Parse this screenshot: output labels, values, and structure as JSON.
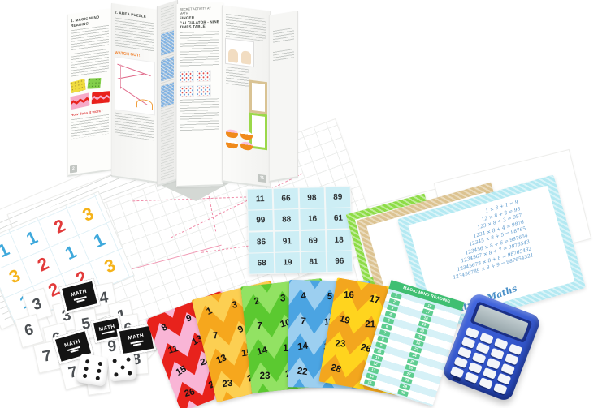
{
  "photo": {
    "subject": "Children's math activity kit laid out: accordion instruction booklet, number cards, zigzag mind-reading cards, certificates, dice and a calculator"
  },
  "booklet": {
    "panel1": {
      "heading": "1. MAGIC MIND READING",
      "subheading": "How does it work?",
      "page_number": "2"
    },
    "panel2": {
      "heading": "2. AREA PUZZLE",
      "callout": "WATCH OUT!"
    },
    "panel4": {
      "kicker": "SECRET ACTIVITY AT MATH",
      "heading": "FINGER CALCULATOR - NINE TIMES TABLE"
    },
    "panel5": {
      "page_number": "11"
    }
  },
  "number_grid_card": {
    "cells": [
      "11",
      "66",
      "98",
      "89",
      "99",
      "88",
      "16",
      "61",
      "86",
      "91",
      "69",
      "18",
      "68",
      "19",
      "81",
      "96"
    ]
  },
  "number_sheet": {
    "badge": "1",
    "cells": [
      "1",
      "1",
      "2",
      "3",
      "3",
      "2",
      "1",
      "1",
      "1",
      "2",
      "2",
      "3"
    ]
  },
  "scatter": {
    "digits": [
      "3",
      "3",
      "4",
      "1",
      "6",
      "5",
      "6",
      "7",
      "6",
      "1",
      "9",
      "8",
      "7",
      "2"
    ],
    "logo_label": "MATH"
  },
  "dice": {
    "left_die_top": "6",
    "right_die_top": "5"
  },
  "certificates": {
    "script_text": "Beauty of Maths",
    "equations": [
      "1 × 8 + 1 = 9",
      "12 × 8 + 2 = 98",
      "123 × 8 + 3 = 987",
      "1234 × 8 + 4 = 9876",
      "12345 × 8 + 5 = 98765",
      "123456 × 8 + 6 = 987654",
      "1234567 × 8 + 7 = 9876543",
      "12345678 × 8 + 8 = 98765432",
      "123456789 × 8 + 9 = 987654321"
    ]
  },
  "fan_cards": {
    "pink": {
      "numbers": [
        "8",
        "9",
        "10",
        "11",
        "13",
        "14",
        "15",
        "24",
        "25",
        "26",
        "27",
        "28"
      ]
    },
    "orange": {
      "numbers": [
        "1",
        "3",
        "5",
        "7",
        "9",
        "11",
        "13",
        "15",
        "21",
        "23",
        "25",
        "27"
      ]
    },
    "green": {
      "numbers": [
        "2",
        "3",
        "6",
        "7",
        "10",
        "11",
        "14",
        "15",
        "22",
        "23",
        "26",
        "27"
      ]
    },
    "blue": {
      "numbers": [
        "4",
        "5",
        "6",
        "7",
        "12",
        "13",
        "14",
        "15",
        "21",
        "22",
        "23",
        "28"
      ]
    },
    "yellow": {
      "numbers": [
        "16",
        "17",
        "18",
        "19",
        "21",
        "22",
        "23",
        "26",
        "27",
        "28"
      ]
    }
  },
  "answer_card": {
    "title": "MAGIC MIND READING",
    "left_column": [
      "1",
      "2",
      "3",
      "4",
      "5",
      "6",
      "7",
      "8",
      "9",
      "10",
      "11",
      "12",
      "13",
      "14",
      "15"
    ],
    "right_column": [
      "16",
      "17",
      "18",
      "19",
      "20",
      "21",
      "22",
      "23",
      "24",
      "25",
      "26",
      "27",
      "28",
      "29",
      "30"
    ]
  },
  "colors": {
    "card_pink": "#f9b5d6",
    "card_pink_chevron": "#e8221c",
    "card_orange": "#f6a71d",
    "card_orange_chevron": "#fccf52",
    "card_green": "#5bc930",
    "card_green_chevron": "#92e263",
    "card_blue": "#4ba4e2",
    "card_blue_chevron": "#9ccff0",
    "card_yellow": "#ffd41e",
    "card_yellow_chevron": "#f3a61e",
    "grid_card": "#cdeef5",
    "answer_green": "#3fbf72",
    "calculator_body": "#2f55c7",
    "cert_blue": "#b4e9f2",
    "cert_tan": "#dcc391",
    "cert_green": "#8ddc46"
  }
}
